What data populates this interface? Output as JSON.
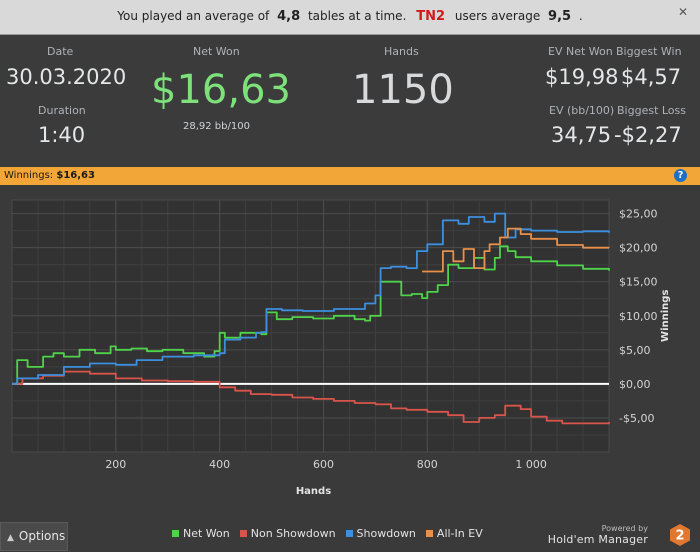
{
  "banner": {
    "text1": "You played an average of",
    "avg_tables": "4,8",
    "text2": "tables at a time.",
    "site": "TN2",
    "text3": "users average",
    "site_avg": "9,5",
    "text4": "."
  },
  "stats": {
    "date_label": "Date",
    "date_value": "30.03.2020",
    "duration_label": "Duration",
    "duration_value": "1:40",
    "net_won_label": "Net Won",
    "net_won_value": "$16,63",
    "net_won_sub": "28,92 bb/100",
    "hands_label": "Hands",
    "hands_value": "1150",
    "ev_net_won_label": "EV Net Won",
    "ev_net_won_value": "$19,98",
    "biggest_win_label": "Biggest Win",
    "biggest_win_value": "$4,57",
    "ev_bb_label": "EV (bb/100)",
    "ev_bb_value": "34,75",
    "biggest_loss_label": "Biggest Loss",
    "biggest_loss_value": "-$2,27"
  },
  "win_strip": {
    "label": "Winnings:",
    "value": "$16,63"
  },
  "bottom": {
    "options_label": "Options",
    "powered_by": "Powered by",
    "brand_name": "Hold'em Manager",
    "brand_version": "2"
  },
  "colors": {
    "net_won": "#4fd34a",
    "non_showdown": "#d9544a",
    "showdown": "#3d8fe0",
    "allin_ev": "#e8904a",
    "net_won_big": "#7ee07a",
    "accent_strip": "#f2a637"
  },
  "chart_data": {
    "type": "line",
    "xlabel": "Hands",
    "ylabel": "Winnings",
    "xlim": [
      0,
      1150
    ],
    "ylim": [
      -10,
      27
    ],
    "x_ticks": [
      200,
      400,
      600,
      800,
      1000
    ],
    "x_tick_labels": [
      "200",
      "400",
      "600",
      "800",
      "1 000"
    ],
    "y_ticks": [
      -5,
      0,
      5,
      10,
      15,
      20,
      25
    ],
    "y_tick_labels": [
      "-$5,00",
      "$0,00",
      "$5,00",
      "$10,00",
      "$15,00",
      "$20,00",
      "$25,00"
    ],
    "legend_position": "bottom",
    "series": [
      {
        "name": "Net Won",
        "color": "#4fd34a",
        "x": [
          0,
          10,
          30,
          60,
          80,
          100,
          130,
          160,
          190,
          200,
          230,
          260,
          290,
          330,
          370,
          390,
          400,
          410,
          440,
          460,
          480,
          490,
          510,
          540,
          580,
          620,
          660,
          680,
          690,
          710,
          750,
          770,
          790,
          800,
          820,
          840,
          860,
          890,
          910,
          930,
          940,
          955,
          970,
          1000,
          1050,
          1100,
          1150
        ],
        "y": [
          0,
          3.5,
          2.5,
          4.0,
          4.5,
          4.0,
          5.0,
          4.5,
          5.5,
          5.0,
          5.2,
          4.8,
          5.0,
          4.5,
          4.0,
          4.8,
          7.5,
          6.8,
          7.5,
          7.5,
          7.3,
          10.5,
          9.5,
          9.8,
          9.6,
          10.0,
          9.5,
          9.3,
          10.0,
          15.0,
          13.0,
          13.2,
          12.6,
          13.5,
          14.5,
          17.5,
          17.0,
          18.5,
          16.8,
          18.5,
          20.2,
          19.5,
          18.6,
          18.0,
          17.4,
          16.9,
          16.63
        ]
      },
      {
        "name": "Non Showdown",
        "color": "#d9544a",
        "x": [
          0,
          20,
          60,
          100,
          150,
          200,
          250,
          300,
          350,
          400,
          430,
          460,
          500,
          540,
          580,
          620,
          660,
          700,
          730,
          760,
          800,
          840,
          870,
          900,
          930,
          950,
          980,
          1000,
          1030,
          1060,
          1100,
          1150
        ],
        "y": [
          0,
          0.8,
          1.2,
          1.8,
          1.5,
          0.8,
          0.5,
          0.4,
          0.3,
          -0.5,
          -1.0,
          -1.5,
          -1.6,
          -2.0,
          -2.2,
          -2.5,
          -2.8,
          -3.0,
          -3.6,
          -3.8,
          -4.1,
          -4.6,
          -5.6,
          -5.0,
          -4.6,
          -3.2,
          -3.7,
          -4.8,
          -5.4,
          -5.8,
          -5.8,
          -5.6
        ]
      },
      {
        "name": "Showdown",
        "color": "#3d8fe0",
        "x": [
          0,
          10,
          50,
          100,
          150,
          200,
          240,
          290,
          350,
          400,
          410,
          440,
          470,
          480,
          490,
          520,
          560,
          620,
          680,
          700,
          710,
          730,
          760,
          780,
          800,
          830,
          860,
          880,
          910,
          930,
          950,
          970,
          1000,
          1050,
          1100,
          1150
        ],
        "y": [
          0,
          0.8,
          1.3,
          2.5,
          3.0,
          2.8,
          3.5,
          4.0,
          4.2,
          4.5,
          6.5,
          6.8,
          7.5,
          7.6,
          11.0,
          10.8,
          10.7,
          11.0,
          11.8,
          13.0,
          17.0,
          17.2,
          17.0,
          19.5,
          20.5,
          24.0,
          23.5,
          24.5,
          23.8,
          25.0,
          21.5,
          22.7,
          22.5,
          22.3,
          22.4,
          22.2
        ]
      },
      {
        "name": "All-In EV",
        "color": "#e8904a",
        "x": [
          790,
          810,
          830,
          850,
          870,
          890,
          910,
          920,
          940,
          955,
          980,
          1000,
          1050,
          1100,
          1150
        ],
        "y": [
          16.5,
          16.5,
          19.5,
          18.0,
          19.8,
          17.0,
          19.5,
          20.5,
          21.5,
          22.8,
          22.0,
          21.3,
          20.4,
          20.0,
          19.98
        ]
      }
    ]
  }
}
